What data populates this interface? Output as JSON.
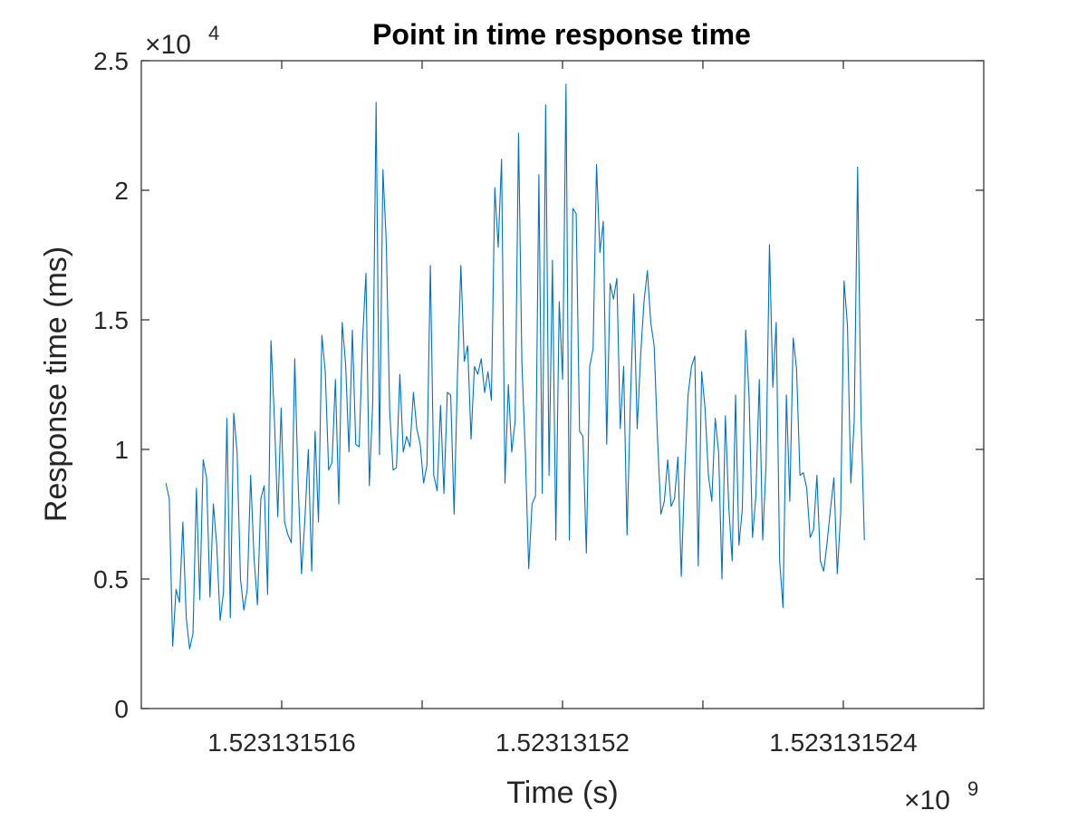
{
  "chart_data": {
    "type": "line",
    "title": "Point in time response time",
    "xlabel": "Time (s)",
    "ylabel": "Response time (ms)",
    "x_multiplier_label": "×10",
    "x_multiplier_exponent": "9",
    "y_multiplier_label": "×10",
    "y_multiplier_exponent": "4",
    "xlim": [
      1523131514,
      1523131526
    ],
    "ylim": [
      0,
      25000
    ],
    "x_ticks": [
      1523131516,
      1523131518,
      1523131520,
      1523131522,
      1523131524
    ],
    "x_tick_labels": [
      "1.523131516",
      "",
      "1.52313152",
      "",
      "1.523131524"
    ],
    "y_ticks": [
      0,
      5000,
      10000,
      15000,
      20000,
      25000
    ],
    "y_tick_labels": [
      "0",
      "0.5",
      "1",
      "1.5",
      "2",
      "2.5"
    ],
    "grid": false,
    "colors": {
      "line": "#0072BD",
      "axes": "#262626"
    },
    "series": [
      {
        "x_start": 1523131514.35,
        "x_end": 1523131524.3,
        "values": [
          8700,
          8100,
          2400,
          4600,
          4100,
          7200,
          3500,
          2300,
          2900,
          8500,
          4200,
          9600,
          8900,
          4300,
          7900,
          6300,
          3400,
          4500,
          11200,
          3500,
          11400,
          9900,
          5000,
          3800,
          4600,
          9000,
          5800,
          4000,
          8100,
          8600,
          4400,
          14200,
          11200,
          7400,
          11600,
          7200,
          6700,
          6400,
          13500,
          8700,
          5200,
          7300,
          10000,
          5300,
          10700,
          7200,
          14400,
          13000,
          9200,
          9500,
          12700,
          7900,
          14900,
          13300,
          9900,
          14600,
          10200,
          10100,
          14200,
          16800,
          8600,
          11800,
          23400,
          9800,
          20800,
          18000,
          11500,
          9200,
          9300,
          12900,
          9900,
          10500,
          10100,
          12200,
          10800,
          10200,
          8700,
          9400,
          17100,
          9000,
          8400,
          11700,
          8300,
          12200,
          12100,
          7500,
          12900,
          17100,
          13400,
          14000,
          10400,
          13200,
          12900,
          13500,
          12200,
          13000,
          11900,
          20100,
          17800,
          21200,
          8700,
          12500,
          9900,
          11100,
          22200,
          13300,
          9900,
          5400,
          7900,
          8200,
          20600,
          8300,
          23300,
          9000,
          17300,
          6500,
          15700,
          12700,
          24100,
          6500,
          19300,
          19100,
          10700,
          10500,
          6000,
          13200,
          13900,
          21000,
          17600,
          18800,
          10200,
          16400,
          15800,
          16600,
          10800,
          13200,
          6700,
          11900,
          16000,
          10800,
          13600,
          15700,
          16900,
          14900,
          14000,
          10400,
          7500,
          8000,
          9600,
          7800,
          8100,
          9700,
          5100,
          9100,
          12100,
          13200,
          13600,
          5500,
          13000,
          11600,
          9000,
          8000,
          11200,
          9900,
          5000,
          11300,
          7800,
          5700,
          12100,
          6300,
          7700,
          14600,
          12000,
          6600,
          8200,
          12700,
          6500,
          9400,
          17900,
          12400,
          14900,
          5700,
          3900,
          12100,
          8000,
          14300,
          13100,
          9000,
          9100,
          8500,
          6600,
          6900,
          9000,
          5700,
          5300,
          6400,
          7700,
          8900,
          5200,
          7500,
          16500,
          14800,
          8700,
          11100,
          20900,
          11300,
          6500
        ]
      }
    ]
  }
}
